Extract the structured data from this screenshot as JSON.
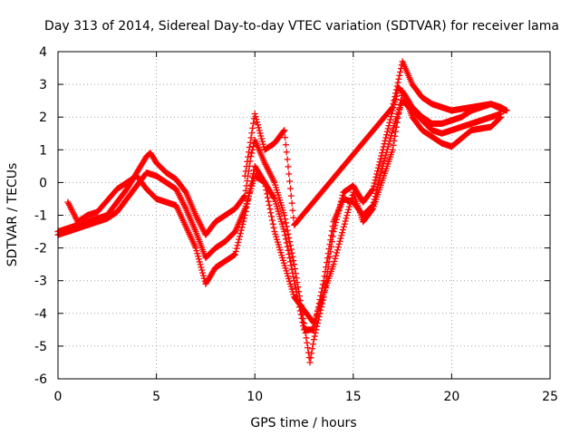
{
  "chart_data": {
    "type": "scatter",
    "title": "Day 313 of 2014, Sidereal Day-to-day VTEC variation (SDTVAR) for receiver lama",
    "xlabel": "GPS time / hours",
    "ylabel": "SDTVAR / TECUs",
    "xlim": [
      0,
      25
    ],
    "ylim": [
      -6,
      4
    ],
    "xticks": [
      "0",
      "5",
      "10",
      "15",
      "20",
      "25"
    ],
    "yticks": [
      "4",
      "3",
      "2",
      "1",
      "0",
      "-1",
      "-2",
      "-3",
      "-4",
      "-5",
      "-6"
    ],
    "grid": true,
    "marker": "+",
    "color": "#ff0000",
    "series": [
      {
        "x": [
          0.0,
          0.5,
          1.0,
          1.5,
          2.0,
          2.5,
          3.0,
          3.5,
          4.0,
          4.5,
          4.7,
          5.0,
          5.5,
          6.0,
          6.5,
          7.0,
          7.5,
          8.0,
          8.5,
          9.0,
          9.5,
          9.8,
          10.0,
          10.5,
          11.0,
          11.5,
          12.0,
          12.5,
          12.8,
          13.0,
          13.5,
          14.0,
          14.5,
          15.0,
          15.5,
          16.0,
          16.5,
          17.0,
          17.3,
          17.6,
          18.0,
          18.5,
          19.0,
          19.5,
          20.0,
          20.5,
          21.0,
          21.5,
          22.0,
          22.5,
          22.8
        ],
        "y": [
          -1.5,
          -1.4,
          -1.3,
          -1.2,
          -1.1,
          -1.0,
          -0.6,
          -0.2,
          0.3,
          0.8,
          0.9,
          0.6,
          0.3,
          0.1,
          -0.3,
          -1.0,
          -1.6,
          -1.2,
          -1.0,
          -0.8,
          -0.4,
          0.8,
          1.3,
          0.6,
          0.0,
          -1.0,
          -2.5,
          -4.3,
          -5.5,
          -4.8,
          -3.5,
          -1.5,
          -0.3,
          -0.1,
          -0.6,
          -0.2,
          1.0,
          2.2,
          2.9,
          2.7,
          2.3,
          2.0,
          1.8,
          1.8,
          1.9,
          2.0,
          2.2,
          2.3,
          2.4,
          2.3,
          2.2
        ]
      },
      {
        "x": [
          0.0,
          0.5,
          1.0,
          1.5,
          2.0,
          2.5,
          3.0,
          3.5,
          4.0,
          4.5,
          5.0,
          5.5,
          6.0,
          6.5,
          7.0,
          7.5,
          8.0,
          8.5,
          9.0,
          9.5,
          10.0,
          10.5,
          11.0,
          11.5,
          12.0,
          12.5,
          13.0,
          13.5,
          14.0,
          14.5,
          15.0,
          15.5,
          16.0,
          16.5,
          17.0,
          17.5,
          18.0,
          18.5,
          19.0,
          19.5,
          20.0,
          20.5,
          21.0,
          21.5,
          22.0,
          22.5
        ],
        "y": [
          -1.6,
          -1.5,
          -1.4,
          -1.3,
          -1.2,
          -1.1,
          -0.9,
          -0.5,
          -0.1,
          0.3,
          0.2,
          0.0,
          -0.2,
          -0.8,
          -1.5,
          -2.3,
          -2.0,
          -1.8,
          -1.5,
          -0.8,
          0.2,
          0.0,
          -0.5,
          -1.5,
          -3.0,
          -4.5,
          -4.5,
          -3.0,
          -1.2,
          -0.5,
          -0.6,
          -1.0,
          -0.7,
          0.5,
          1.6,
          2.5,
          2.2,
          1.9,
          1.6,
          1.5,
          1.6,
          1.7,
          1.8,
          1.9,
          2.0,
          2.1
        ]
      },
      {
        "x": [
          0.5,
          1.0,
          1.5,
          2.0,
          3.0,
          4.0,
          4.5,
          5.0,
          6.0,
          7.0,
          7.5,
          8.0,
          9.0,
          9.5,
          10.0,
          10.5,
          11.0,
          12.0,
          13.0,
          14.0,
          15.0,
          15.5,
          16.0,
          17.0,
          17.5,
          18.0,
          18.5,
          19.0,
          19.5,
          20.0,
          21.0,
          22.0,
          22.5
        ],
        "y": [
          -0.6,
          -1.2,
          -1.0,
          -0.9,
          -0.2,
          0.2,
          -0.2,
          -0.5,
          -0.7,
          -2.0,
          -3.1,
          -2.6,
          -2.2,
          -1.0,
          0.5,
          0.0,
          -1.5,
          -3.5,
          -4.3,
          -2.5,
          -0.3,
          -1.2,
          -0.8,
          1.0,
          2.8,
          2.0,
          1.6,
          1.4,
          1.2,
          1.1,
          1.6,
          1.7,
          2.0
        ]
      },
      {
        "x": [
          9.5,
          10.0,
          10.5,
          11.0,
          11.5,
          12.0,
          17.0,
          17.5,
          18.0,
          18.5,
          19.0,
          19.5,
          20.0,
          21.0,
          22.0,
          22.7
        ],
        "y": [
          0.2,
          2.1,
          1.0,
          1.2,
          1.6,
          -1.3,
          2.3,
          3.7,
          3.0,
          2.6,
          2.4,
          2.3,
          2.2,
          2.3,
          2.4,
          2.2
        ]
      }
    ]
  }
}
